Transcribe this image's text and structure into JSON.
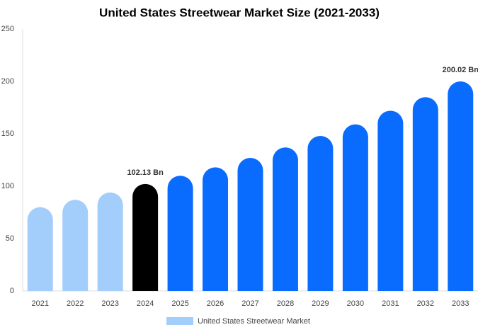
{
  "chart_data": {
    "type": "bar",
    "title": "United States Streetwear Market Size (2021-2033)",
    "categories": [
      "2021",
      "2022",
      "2023",
      "2024",
      "2025",
      "2026",
      "2027",
      "2028",
      "2029",
      "2030",
      "2031",
      "2032",
      "2033"
    ],
    "series": [
      {
        "name": "United States Streetwear Market",
        "color": "#a3cdfb",
        "values": [
          80,
          87,
          94,
          102.13,
          110,
          118,
          127,
          137,
          148,
          159,
          172,
          185,
          200.02
        ],
        "value_labels": [
          null,
          null,
          null,
          "102.13 Bn",
          null,
          null,
          null,
          null,
          null,
          null,
          null,
          null,
          "200.02 Bn"
        ],
        "colors": [
          "#a3cdfb",
          "#a3cdfb",
          "#a3cdfb",
          "#000000",
          "#0a6cff",
          "#0a6cff",
          "#0a6cff",
          "#0a6cff",
          "#0a6cff",
          "#0a6cff",
          "#0a6cff",
          "#0a6cff",
          "#0a6cff"
        ]
      }
    ],
    "ylim": [
      0,
      250
    ],
    "yticks": [
      0,
      50,
      100,
      150,
      200,
      250
    ],
    "grid": false
  }
}
